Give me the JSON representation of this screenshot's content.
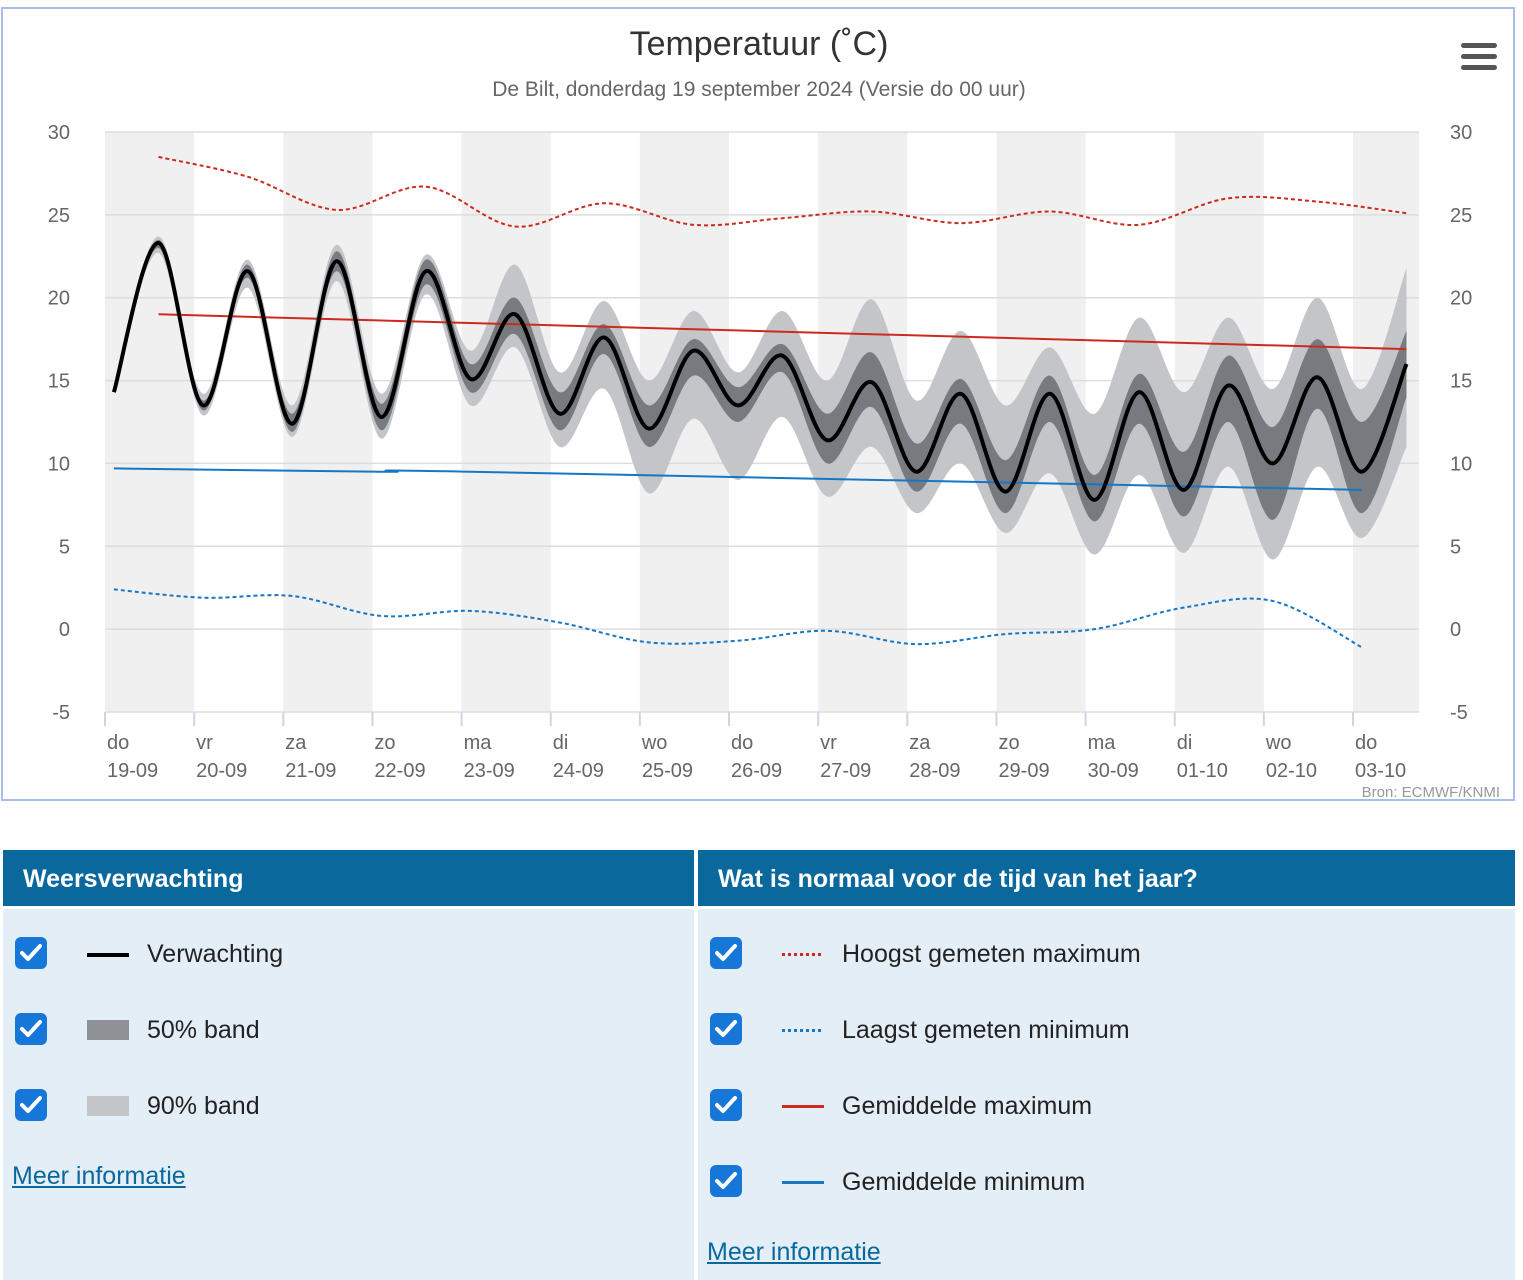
{
  "chart": {
    "title": "Temperatuur (˚C)",
    "subtitle": "De Bilt, donderdag 19 september 2024 (Versie do 00 uur)",
    "source": "Bron: ECMWF/KNMI",
    "menu_icon": "hamburger-icon"
  },
  "chart_data": {
    "type": "line",
    "ylim": [
      -5,
      30
    ],
    "yticks": [
      30,
      25,
      20,
      15,
      10,
      5,
      0,
      -5
    ],
    "x_days": [
      {
        "day": "do",
        "date": "19-09"
      },
      {
        "day": "vr",
        "date": "20-09"
      },
      {
        "day": "za",
        "date": "21-09"
      },
      {
        "day": "zo",
        "date": "22-09"
      },
      {
        "day": "ma",
        "date": "23-09"
      },
      {
        "day": "di",
        "date": "24-09"
      },
      {
        "day": "wo",
        "date": "25-09"
      },
      {
        "day": "do",
        "date": "26-09"
      },
      {
        "day": "vr",
        "date": "27-09"
      },
      {
        "day": "za",
        "date": "28-09"
      },
      {
        "day": "zo",
        "date": "29-09"
      },
      {
        "day": "ma",
        "date": "30-09"
      },
      {
        "day": "di",
        "date": "01-10"
      },
      {
        "day": "wo",
        "date": "02-10"
      },
      {
        "day": "do",
        "date": "03-10"
      }
    ],
    "series": [
      {
        "name": "Verwachting",
        "color": "#000000",
        "points": [
          [
            0.1,
            14.3
          ],
          [
            0.6,
            23.3
          ],
          [
            1.1,
            13.5
          ],
          [
            1.6,
            21.6
          ],
          [
            2.1,
            12.4
          ],
          [
            2.6,
            22.2
          ],
          [
            3.1,
            12.8
          ],
          [
            3.6,
            21.6
          ],
          [
            4.1,
            15.1
          ],
          [
            4.6,
            19.0
          ],
          [
            5.1,
            13.0
          ],
          [
            5.6,
            17.6
          ],
          [
            6.1,
            12.1
          ],
          [
            6.6,
            16.8
          ],
          [
            7.1,
            13.5
          ],
          [
            7.6,
            16.5
          ],
          [
            8.1,
            11.4
          ],
          [
            8.6,
            14.9
          ],
          [
            9.1,
            9.5
          ],
          [
            9.6,
            14.2
          ],
          [
            10.1,
            8.3
          ],
          [
            10.6,
            14.2
          ],
          [
            11.1,
            7.8
          ],
          [
            11.6,
            14.3
          ],
          [
            12.1,
            8.4
          ],
          [
            12.6,
            14.7
          ],
          [
            13.1,
            10.0
          ],
          [
            13.6,
            15.2
          ],
          [
            14.1,
            9.5
          ],
          [
            14.6,
            16.0
          ]
        ]
      },
      {
        "name": "50% band",
        "color": "#777b80",
        "upper": [
          [
            0.1,
            14.3
          ],
          [
            0.6,
            23.5
          ],
          [
            1.1,
            13.8
          ],
          [
            1.6,
            22.0
          ],
          [
            2.1,
            13.0
          ],
          [
            2.6,
            22.8
          ],
          [
            3.1,
            13.6
          ],
          [
            3.6,
            22.3
          ],
          [
            4.1,
            16.0
          ],
          [
            4.6,
            20.0
          ],
          [
            5.1,
            14.3
          ],
          [
            5.6,
            18.4
          ],
          [
            6.1,
            13.5
          ],
          [
            6.6,
            17.5
          ],
          [
            7.1,
            14.6
          ],
          [
            7.6,
            17.2
          ],
          [
            8.1,
            13.0
          ],
          [
            8.6,
            16.7
          ],
          [
            9.1,
            11.2
          ],
          [
            9.6,
            15.1
          ],
          [
            10.1,
            10.2
          ],
          [
            10.6,
            15.3
          ],
          [
            11.1,
            9.3
          ],
          [
            11.6,
            15.4
          ],
          [
            12.1,
            10.7
          ],
          [
            12.6,
            16.5
          ],
          [
            13.1,
            12.2
          ],
          [
            13.6,
            17.5
          ],
          [
            14.1,
            12.5
          ],
          [
            14.6,
            18.0
          ]
        ],
        "lower": [
          [
            0.1,
            14.3
          ],
          [
            0.6,
            23.0
          ],
          [
            1.1,
            13.2
          ],
          [
            1.6,
            21.2
          ],
          [
            2.1,
            11.9
          ],
          [
            2.6,
            21.6
          ],
          [
            3.1,
            12.0
          ],
          [
            3.6,
            20.8
          ],
          [
            4.1,
            14.3
          ],
          [
            4.6,
            17.8
          ],
          [
            5.1,
            12.0
          ],
          [
            5.6,
            16.6
          ],
          [
            6.1,
            11.0
          ],
          [
            6.6,
            15.3
          ],
          [
            7.1,
            12.5
          ],
          [
            7.6,
            15.5
          ],
          [
            8.1,
            10.0
          ],
          [
            8.6,
            13.4
          ],
          [
            9.1,
            8.3
          ],
          [
            9.6,
            12.4
          ],
          [
            10.1,
            7.0
          ],
          [
            10.6,
            12.5
          ],
          [
            11.1,
            6.5
          ],
          [
            11.6,
            12.4
          ],
          [
            12.1,
            6.8
          ],
          [
            12.6,
            12.5
          ],
          [
            13.1,
            6.6
          ],
          [
            13.6,
            13.3
          ],
          [
            14.1,
            7.0
          ],
          [
            14.6,
            14.0
          ]
        ]
      },
      {
        "name": "90% band",
        "color": "#c3c5c8",
        "upper": [
          [
            0.1,
            14.3
          ],
          [
            0.6,
            23.7
          ],
          [
            1.1,
            14.2
          ],
          [
            1.6,
            22.3
          ],
          [
            2.1,
            13.5
          ],
          [
            2.6,
            23.2
          ],
          [
            3.1,
            14.2
          ],
          [
            3.6,
            22.6
          ],
          [
            4.1,
            16.8
          ],
          [
            4.6,
            22.0
          ],
          [
            5.1,
            15.5
          ],
          [
            5.6,
            19.8
          ],
          [
            6.1,
            15.0
          ],
          [
            6.6,
            19.2
          ],
          [
            7.1,
            15.5
          ],
          [
            7.6,
            19.2
          ],
          [
            8.1,
            15.0
          ],
          [
            8.6,
            19.9
          ],
          [
            9.1,
            13.8
          ],
          [
            9.6,
            18.0
          ],
          [
            10.1,
            13.5
          ],
          [
            10.6,
            17.0
          ],
          [
            11.1,
            13.0
          ],
          [
            11.6,
            18.8
          ],
          [
            12.1,
            14.3
          ],
          [
            12.6,
            18.8
          ],
          [
            13.1,
            14.5
          ],
          [
            13.6,
            20.0
          ],
          [
            14.1,
            14.5
          ],
          [
            14.6,
            21.8
          ]
        ],
        "lower": [
          [
            0.1,
            14.3
          ],
          [
            0.6,
            22.7
          ],
          [
            1.1,
            12.9
          ],
          [
            1.6,
            20.6
          ],
          [
            2.1,
            11.6
          ],
          [
            2.6,
            21.0
          ],
          [
            3.1,
            11.5
          ],
          [
            3.6,
            20.2
          ],
          [
            4.1,
            13.5
          ],
          [
            4.6,
            17.0
          ],
          [
            5.1,
            11.0
          ],
          [
            5.6,
            14.5
          ],
          [
            6.1,
            8.2
          ],
          [
            6.6,
            12.7
          ],
          [
            7.1,
            9.0
          ],
          [
            7.6,
            12.8
          ],
          [
            8.1,
            8.0
          ],
          [
            8.6,
            11.0
          ],
          [
            9.1,
            7.0
          ],
          [
            9.6,
            10.0
          ],
          [
            10.1,
            5.8
          ],
          [
            10.6,
            9.4
          ],
          [
            11.1,
            4.5
          ],
          [
            11.6,
            9.3
          ],
          [
            12.1,
            4.6
          ],
          [
            12.6,
            9.8
          ],
          [
            13.1,
            4.2
          ],
          [
            13.6,
            9.8
          ],
          [
            14.1,
            5.5
          ],
          [
            14.6,
            11.0
          ]
        ]
      },
      {
        "name": "Hoogst gemeten maximum",
        "color": "#cc2a1e",
        "points": [
          [
            0.6,
            28.5
          ],
          [
            1.6,
            27.3
          ],
          [
            2.6,
            25.3
          ],
          [
            3.6,
            26.7
          ],
          [
            4.6,
            24.3
          ],
          [
            5.6,
            25.7
          ],
          [
            6.6,
            24.4
          ],
          [
            7.6,
            24.8
          ],
          [
            8.6,
            25.2
          ],
          [
            9.6,
            24.5
          ],
          [
            10.6,
            25.2
          ],
          [
            11.6,
            24.4
          ],
          [
            12.6,
            26.0
          ],
          [
            13.6,
            25.8
          ],
          [
            14.6,
            25.1
          ]
        ]
      },
      {
        "name": "Laagst gemeten minimum",
        "color": "#1677c4",
        "points": [
          [
            0.1,
            2.4
          ],
          [
            1.1,
            1.9
          ],
          [
            2.1,
            2.0
          ],
          [
            3.1,
            0.8
          ],
          [
            4.1,
            1.1
          ],
          [
            5.1,
            0.4
          ],
          [
            6.1,
            -0.8
          ],
          [
            7.1,
            -0.7
          ],
          [
            8.1,
            -0.1
          ],
          [
            9.1,
            -0.9
          ],
          [
            10.1,
            -0.3
          ],
          [
            11.1,
            0.0
          ],
          [
            12.1,
            1.3
          ],
          [
            13.1,
            1.7
          ],
          [
            14.1,
            -1.1
          ]
        ]
      },
      {
        "name": "Gemiddelde maximum",
        "color": "#cc2a1e",
        "points": [
          [
            0.6,
            19.0
          ],
          [
            14.6,
            16.9
          ]
        ]
      },
      {
        "name": "Gemiddelde minimum",
        "color": "#1677c4",
        "points": [
          [
            0.1,
            9.7
          ],
          [
            3.1,
            9.5
          ],
          [
            4.1,
            9.5
          ],
          [
            14.1,
            8.4
          ]
        ]
      }
    ]
  },
  "legend_forecast": {
    "heading": "Weersverwachting",
    "items": [
      {
        "label": "Verwachting",
        "checked": true
      },
      {
        "label": "50% band",
        "checked": true
      },
      {
        "label": "90% band",
        "checked": true
      }
    ],
    "more_link": "Meer informatie"
  },
  "legend_normal": {
    "heading": "Wat is normaal voor de tijd van het jaar?",
    "items": [
      {
        "label": "Hoogst gemeten maximum",
        "checked": true
      },
      {
        "label": "Laagst gemeten minimum",
        "checked": true
      },
      {
        "label": "Gemiddelde maximum",
        "checked": true
      },
      {
        "label": "Gemiddelde minimum",
        "checked": true
      }
    ],
    "more_link": "Meer informatie"
  }
}
